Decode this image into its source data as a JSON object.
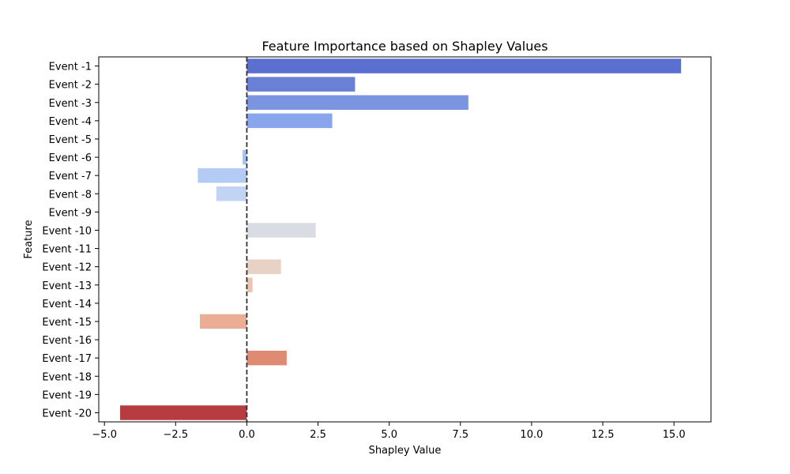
{
  "chart_data": {
    "type": "bar",
    "orientation": "horizontal",
    "title": "Feature Importance based on Shapley Values",
    "xlabel": "Shapley Value",
    "ylabel": "Feature",
    "xlim": [
      -5.2,
      16.3
    ],
    "xticks": [
      -5.0,
      -2.5,
      0.0,
      2.5,
      5.0,
      7.5,
      10.0,
      12.5,
      15.0
    ],
    "xtick_labels": [
      "−5.0",
      "−2.5",
      "0.0",
      "2.5",
      "5.0",
      "7.5",
      "10.0",
      "12.5",
      "15.0"
    ],
    "grid": false,
    "reference_line": {
      "x": 0.0,
      "style": "dashed"
    },
    "categories": [
      "Event -1",
      "Event -2",
      "Event -3",
      "Event -4",
      "Event -5",
      "Event -6",
      "Event -7",
      "Event -8",
      "Event -9",
      "Event -10",
      "Event -11",
      "Event -12",
      "Event -13",
      "Event -14",
      "Event -15",
      "Event -16",
      "Event -17",
      "Event -18",
      "Event -19",
      "Event -20"
    ],
    "values": [
      15.25,
      3.8,
      7.78,
      3.0,
      0.0,
      -0.15,
      -1.72,
      -1.07,
      0.0,
      2.42,
      0.0,
      1.2,
      0.2,
      0.0,
      -1.65,
      0.0,
      1.4,
      0.0,
      0.0,
      -4.45
    ],
    "colors": [
      "#5b6fd0",
      "#6a80d6",
      "#7b95e0",
      "#89a6ec",
      "#97b7f2",
      "#a5c3f5",
      "#b3cbf5",
      "#c1d4f3",
      "#cfd9ef",
      "#d9dce3",
      "#e2dad5",
      "#e8d2c6",
      "#edc4b2",
      "#eeb49e",
      "#ebad96",
      "#e99d82",
      "#df8b73",
      "#d66d5b",
      "#c95048",
      "#b73c40"
    ]
  }
}
